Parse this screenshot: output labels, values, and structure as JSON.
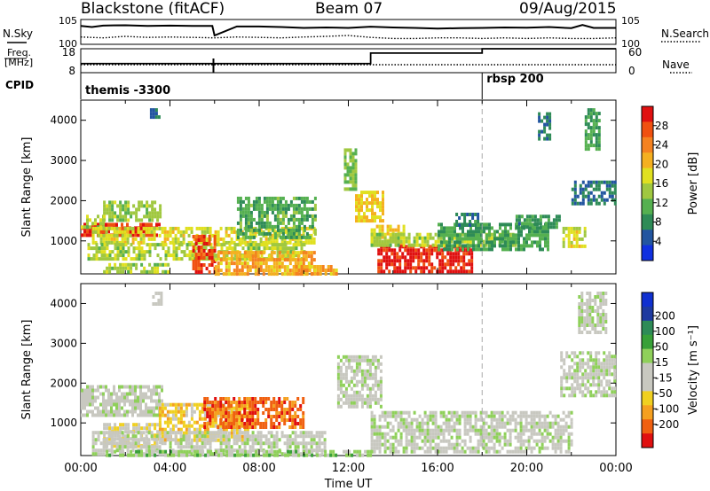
{
  "header": {
    "title": "Blackstone (fitACF)",
    "beam": "Beam 07",
    "date": "09/Aug/2015"
  },
  "labels": {
    "nsky": "N.Sky",
    "nsearch": "N.Search",
    "freq_top": "Freq.",
    "freq_unit": "[MHz]",
    "cpid": "CPID",
    "nave": "Nave",
    "nsky_hi": "10^5",
    "nsky_lo": "10^0",
    "nsearch_hi": "10^5",
    "nsearch_lo": "10^0",
    "freq_hi": "18",
    "freq_lo": "8",
    "nave_hi": "60",
    "nave_lo": "0"
  },
  "cpid_segments": [
    {
      "label": "themis -3300",
      "start_hour": 0
    },
    {
      "label": "rbsp 200",
      "start_hour": 18
    }
  ],
  "colors": {
    "grid_marker": "#aaaaaa",
    "power_scale": [
      "#1030e0",
      "#2255a0",
      "#2e8b57",
      "#55b050",
      "#a0c840",
      "#e0e020",
      "#f5b020",
      "#f58220",
      "#f05010",
      "#e01010"
    ],
    "velocity_scale": [
      "#e01010",
      "#f06010",
      "#f5a020",
      "#f0d020",
      "#c8c8c0",
      "#c8c8c0",
      "#8fd05a",
      "#38a038",
      "#2e8b57",
      "#1e3aa0",
      "#1030d0"
    ]
  },
  "chart_data": [
    {
      "type": "line",
      "title": "N.Sky / N.Search",
      "x_unit": "hour UT",
      "xlim": [
        0,
        24
      ],
      "y_scale": "log",
      "ylim": [
        1,
        100000
      ],
      "series": [
        {
          "name": "N.Sky",
          "style": "solid",
          "x": [
            0,
            0.5,
            1,
            2,
            3,
            4,
            5,
            5.9,
            6,
            7,
            8,
            9,
            10,
            11,
            12,
            13,
            14,
            15,
            16,
            17,
            18,
            19,
            20,
            21,
            22,
            22.5,
            23,
            24
          ],
          "y": [
            5000,
            3000,
            6000,
            7000,
            5000,
            6000,
            5000,
            5000,
            60,
            4000,
            4000,
            3000,
            2000,
            2500,
            2000,
            3500,
            2500,
            2000,
            1500,
            1800,
            2000,
            2500,
            2200,
            3000,
            1800,
            8000,
            2000,
            2000
          ]
        },
        {
          "name": "N.Search",
          "style": "dotted",
          "x": [
            0,
            1,
            2,
            3,
            4,
            5,
            6,
            7,
            8,
            9,
            10,
            11,
            12,
            13,
            14,
            15,
            16,
            17,
            18,
            19,
            20,
            21,
            22,
            23,
            24
          ],
          "y": [
            30,
            20,
            40,
            25,
            30,
            25,
            20,
            30,
            25,
            20,
            30,
            40,
            60,
            25,
            15,
            15,
            20,
            20,
            15,
            20,
            15,
            20,
            15,
            15,
            20
          ]
        }
      ]
    },
    {
      "type": "line",
      "title": "Freq. / Nave",
      "x_unit": "hour UT",
      "xlim": [
        0,
        24
      ],
      "series": [
        {
          "name": "Freq. [MHz]",
          "style": "solid",
          "ylim": [
            8,
            18
          ],
          "x": [
            0,
            13,
            13,
            18,
            18,
            24
          ],
          "y": [
            11.8,
            11.8,
            16.2,
            16.2,
            18,
            18
          ]
        },
        {
          "name": "Nave",
          "style": "dotted",
          "ylim": [
            0,
            60
          ],
          "x": [
            0,
            24
          ],
          "y": [
            20,
            20
          ]
        }
      ]
    },
    {
      "type": "heatmap",
      "xlabel": "",
      "ylabel": "Slant Range [km]",
      "colorbar_label": "Power [dB]",
      "x_unit": "hour UT",
      "xlim": [
        0,
        24
      ],
      "ylim": [
        180,
        4500
      ],
      "xticks": [
        0,
        2,
        4,
        6,
        8,
        10,
        12,
        14,
        16,
        18,
        20,
        22,
        24
      ],
      "yticks": [
        1000,
        2000,
        3000,
        4000
      ],
      "ytick_labels": [
        "1000",
        "2000",
        "3000",
        "4000"
      ],
      "colorbar_ticks": [
        "4",
        "8",
        "12",
        "16",
        "20",
        "24",
        "28"
      ],
      "colorbar_range": [
        0,
        30
      ],
      "echo_regions": [
        {
          "t": [
            0,
            3.5
          ],
          "r": [
            1100,
            1450
          ],
          "value": 27
        },
        {
          "t": [
            0,
            1.0
          ],
          "r": [
            1300,
            1650
          ],
          "value": 14
        },
        {
          "t": [
            1.0,
            3.6
          ],
          "r": [
            1550,
            2000
          ],
          "value": 13
        },
        {
          "t": [
            0.5,
            10.5
          ],
          "r": [
            950,
            1350
          ],
          "value": 16
        },
        {
          "t": [
            0.3,
            10.0
          ],
          "r": [
            550,
            950
          ],
          "value": 14
        },
        {
          "t": [
            1.0,
            4.0
          ],
          "r": [
            250,
            450
          ],
          "value": 14
        },
        {
          "t": [
            5.0,
            6.0
          ],
          "r": [
            200,
            1150
          ],
          "value": 26
        },
        {
          "t": [
            6.0,
            10.5
          ],
          "r": [
            200,
            750
          ],
          "value": 20
        },
        {
          "t": [
            7.0,
            10.5
          ],
          "r": [
            1100,
            2100
          ],
          "value": 10
        },
        {
          "t": [
            9.5,
            11.5
          ],
          "r": [
            200,
            400
          ],
          "value": 20
        },
        {
          "t": [
            11.8,
            12.3
          ],
          "r": [
            2250,
            3300
          ],
          "value": 12
        },
        {
          "t": [
            12.3,
            13.5
          ],
          "r": [
            1500,
            2250
          ],
          "value": 18
        },
        {
          "t": [
            13.0,
            14.5
          ],
          "r": [
            950,
            1400
          ],
          "value": 18
        },
        {
          "t": [
            13.3,
            17.5
          ],
          "r": [
            250,
            900
          ],
          "value": 28
        },
        {
          "t": [
            13.0,
            19.5
          ],
          "r": [
            900,
            1200
          ],
          "value": 14
        },
        {
          "t": [
            16.0,
            21.0
          ],
          "r": [
            750,
            1450
          ],
          "value": 9
        },
        {
          "t": [
            19.5,
            21.5
          ],
          "r": [
            1300,
            1650
          ],
          "value": 8
        },
        {
          "t": [
            21.6,
            22.6
          ],
          "r": [
            850,
            1350
          ],
          "value": 16
        },
        {
          "t": [
            16.8,
            17.8
          ],
          "r": [
            1400,
            1700
          ],
          "value": 7
        },
        {
          "t": [
            22.0,
            24
          ],
          "r": [
            1900,
            2500
          ],
          "value": 6
        },
        {
          "t": [
            22.6,
            23.3
          ],
          "r": [
            3300,
            4300
          ],
          "value": 9
        },
        {
          "t": [
            3.1,
            3.5
          ],
          "r": [
            4100,
            4300
          ],
          "value": 6
        },
        {
          "t": [
            20.5,
            21.0
          ],
          "r": [
            3500,
            4200
          ],
          "value": 6
        }
      ]
    },
    {
      "type": "heatmap",
      "xlabel": "Time UT",
      "ylabel": "Slant Range [km]",
      "colorbar_label": "Velocity [m s^-1]",
      "x_unit": "hour UT",
      "xlim": [
        0,
        24
      ],
      "ylim": [
        180,
        4500
      ],
      "xticks": [
        0,
        2,
        4,
        6,
        8,
        10,
        12,
        14,
        16,
        18,
        20,
        22,
        24
      ],
      "xtick_labels": [
        "00:00",
        "04:00",
        "08:00",
        "12:00",
        "16:00",
        "20:00",
        "00:00"
      ],
      "yticks": [
        1000,
        2000,
        3000,
        4000
      ],
      "ytick_labels": [
        "1000",
        "2000",
        "3000",
        "4000"
      ],
      "colorbar_ticks": [
        "200",
        "100",
        "50",
        "15",
        "-15",
        "-50",
        "-100",
        "-200"
      ],
      "colorbar_range": [
        -250,
        250
      ],
      "echo_regions": [
        {
          "t": [
            0,
            3.6
          ],
          "r": [
            1150,
            1950
          ],
          "value": 0
        },
        {
          "t": [
            1.0,
            3.6
          ],
          "r": [
            450,
            1000
          ],
          "value": -60
        },
        {
          "t": [
            3.5,
            7.5
          ],
          "r": [
            550,
            1500
          ],
          "value": -90
        },
        {
          "t": [
            5.5,
            10.0
          ],
          "r": [
            900,
            1650
          ],
          "value": -180
        },
        {
          "t": [
            0.5,
            11.0
          ],
          "r": [
            250,
            800
          ],
          "value": 0
        },
        {
          "t": [
            1.0,
            13.0
          ],
          "r": [
            180,
            320
          ],
          "value": 40
        },
        {
          "t": [
            11.5,
            13.5
          ],
          "r": [
            1400,
            2700
          ],
          "value": 0
        },
        {
          "t": [
            13.0,
            22.0
          ],
          "r": [
            250,
            1300
          ],
          "value": 0
        },
        {
          "t": [
            21.5,
            24
          ],
          "r": [
            1700,
            2800
          ],
          "value": 0
        },
        {
          "t": [
            22.3,
            23.5
          ],
          "r": [
            3300,
            4300
          ],
          "value": 0
        },
        {
          "t": [
            3.2,
            3.6
          ],
          "r": [
            4000,
            4300
          ],
          "value": -40
        }
      ]
    }
  ]
}
